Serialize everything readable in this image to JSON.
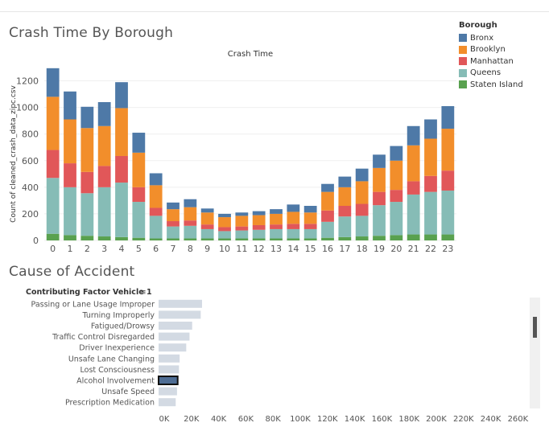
{
  "titles": {
    "chart1": "Crash Time By Borough",
    "chart2": "Cause of Accident"
  },
  "legend": {
    "title": "Borough",
    "items": [
      {
        "label": "Bronx",
        "color": "#4e79a7"
      },
      {
        "label": "Brooklyn",
        "color": "#f28e2b"
      },
      {
        "label": "Manhattan",
        "color": "#e15759"
      },
      {
        "label": "Queens",
        "color": "#86bcb6"
      },
      {
        "label": "Staten Island",
        "color": "#59a14f"
      }
    ]
  },
  "chart_data": [
    {
      "type": "bar",
      "stacked": true,
      "title": "Crash Time",
      "ylabel": "Count of cleaned_crash_data_zipc.csv",
      "xlabel": "",
      "ylim": [
        0,
        1300
      ],
      "yticks": [
        0,
        200,
        400,
        600,
        800,
        1000,
        1200
      ],
      "categories": [
        "0",
        "1",
        "2",
        "3",
        "4",
        "5",
        "6",
        "7",
        "8",
        "9",
        "10",
        "11",
        "12",
        "13",
        "14",
        "15",
        "16",
        "17",
        "18",
        "19",
        "20",
        "21",
        "22",
        "23"
      ],
      "series": [
        {
          "name": "Staten Island",
          "color": "#59a14f",
          "values": [
            50,
            40,
            35,
            30,
            25,
            20,
            15,
            15,
            15,
            15,
            15,
            15,
            15,
            15,
            15,
            15,
            20,
            25,
            30,
            35,
            40,
            45,
            45,
            45
          ]
        },
        {
          "name": "Queens",
          "color": "#86bcb6",
          "values": [
            420,
            360,
            320,
            370,
            410,
            270,
            170,
            90,
            95,
            70,
            55,
            60,
            65,
            70,
            70,
            70,
            120,
            155,
            155,
            230,
            250,
            300,
            320,
            330
          ]
        },
        {
          "name": "Manhattan",
          "color": "#e15759",
          "values": [
            210,
            180,
            160,
            160,
            200,
            110,
            60,
            40,
            40,
            35,
            30,
            30,
            35,
            35,
            40,
            40,
            85,
            80,
            90,
            100,
            90,
            100,
            120,
            150
          ]
        },
        {
          "name": "Brooklyn",
          "color": "#f28e2b",
          "values": [
            400,
            330,
            330,
            300,
            360,
            260,
            170,
            90,
            100,
            90,
            75,
            80,
            75,
            80,
            90,
            85,
            140,
            140,
            170,
            180,
            220,
            270,
            280,
            315
          ]
        },
        {
          "name": "Bronx",
          "color": "#4e79a7",
          "values": [
            215,
            210,
            160,
            180,
            195,
            150,
            90,
            50,
            60,
            30,
            25,
            25,
            30,
            35,
            55,
            50,
            60,
            80,
            95,
            100,
            110,
            145,
            145,
            170
          ]
        }
      ]
    },
    {
      "type": "bar",
      "orientation": "horizontal",
      "title": "",
      "ylabel": "Contributing Factor Vehicle 1",
      "xlabel": "",
      "xlim": [
        0,
        280000
      ],
      "xticks": [
        "0K",
        "20K",
        "40K",
        "60K",
        "80K",
        "100K",
        "120K",
        "140K",
        "160K",
        "180K",
        "200K",
        "220K",
        "240K",
        "260K"
      ],
      "categories": [
        "Passing or Lane Usage Improper",
        "Turning Improperly",
        "Fatigued/Drowsy",
        "Traffic Control Disregarded",
        "Driver Inexperience",
        "Unsafe Lane Changing",
        "Lost Consciousness",
        "Alcohol Involvement",
        "Unsafe Speed",
        "Prescription Medication"
      ],
      "values": [
        33000,
        32000,
        25500,
        23500,
        21000,
        16000,
        15500,
        14500,
        14000,
        13000
      ],
      "highlighted": "Alcohol Involvement",
      "bar_color": "#d3dae3",
      "highlight_color": "#4e6d94"
    }
  ]
}
